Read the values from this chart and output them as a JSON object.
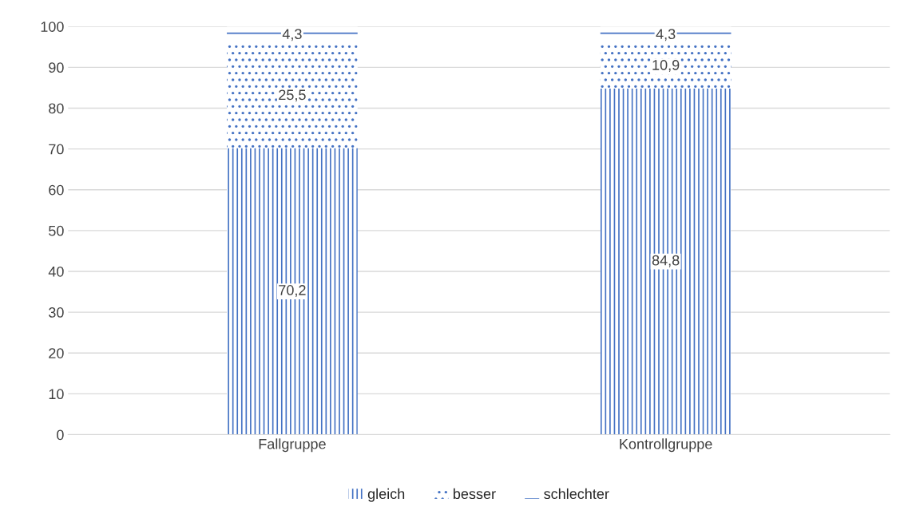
{
  "chart_data": {
    "type": "bar",
    "stacked": true,
    "categories": [
      "Fallgruppe",
      "Kontrollgruppe"
    ],
    "series": [
      {
        "name": "gleich",
        "color": "#4472c4",
        "values": [
          70.2,
          84.8
        ],
        "value_labels": [
          "70,2",
          "84,8"
        ]
      },
      {
        "name": "besser",
        "color": "#4472c4",
        "values": [
          25.5,
          10.9
        ],
        "value_labels": [
          "25,5",
          "10,9"
        ]
      },
      {
        "name": "schlechter",
        "color": "#4472c4",
        "values": [
          4.3,
          4.3
        ],
        "value_labels": [
          "4,3",
          "4,3"
        ]
      }
    ],
    "ylim": [
      0,
      100
    ],
    "yticks": [
      0,
      10,
      20,
      30,
      40,
      50,
      60,
      70,
      80,
      90,
      100
    ],
    "grid": "y",
    "legend": "bottom"
  }
}
